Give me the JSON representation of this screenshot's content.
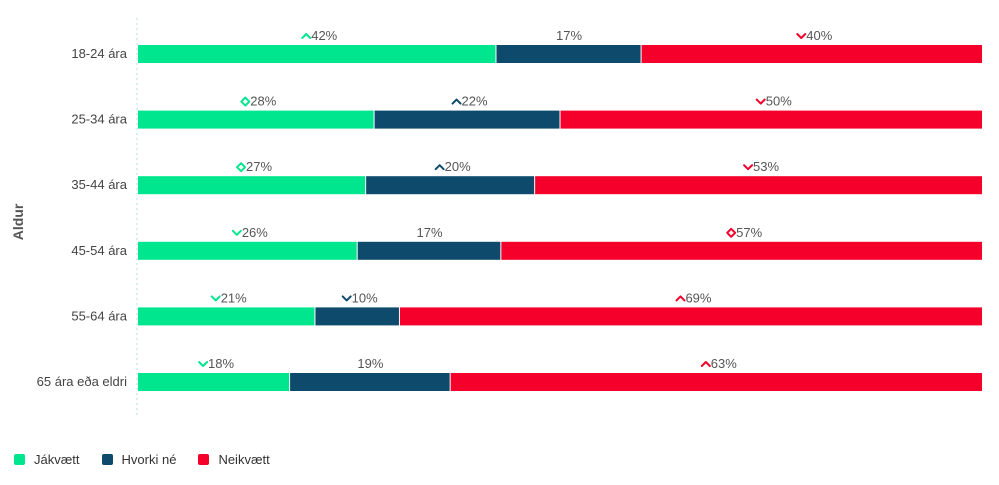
{
  "chart_data": {
    "type": "bar",
    "orientation": "horizontal",
    "stacked": true,
    "percent": true,
    "ylabel": "Aldur",
    "categories": [
      "18-24 ára",
      "25-34 ára",
      "35-44 ára",
      "45-54 ára",
      "55-64 ára",
      "65 ára eða eldri"
    ],
    "series": [
      {
        "name": "Jákvætt",
        "color": "#00e68f",
        "values": [
          42,
          28,
          27,
          26,
          21,
          18
        ],
        "markers": [
          "up",
          "diamond",
          "diamond",
          "down",
          "down",
          "down"
        ]
      },
      {
        "name": "Hvorki né",
        "color": "#0d4a6b",
        "values": [
          17,
          22,
          20,
          17,
          10,
          19
        ],
        "markers": [
          "none",
          "up",
          "up",
          "none",
          "down",
          "none"
        ]
      },
      {
        "name": "Neikvætt",
        "color": "#f5002b",
        "values": [
          40,
          50,
          53,
          57,
          69,
          63
        ],
        "markers": [
          "down",
          "down",
          "down",
          "diamond",
          "up",
          "up"
        ]
      }
    ],
    "xlim": [
      0,
      100
    ],
    "grid": false,
    "legend_position": "bottom-left"
  }
}
